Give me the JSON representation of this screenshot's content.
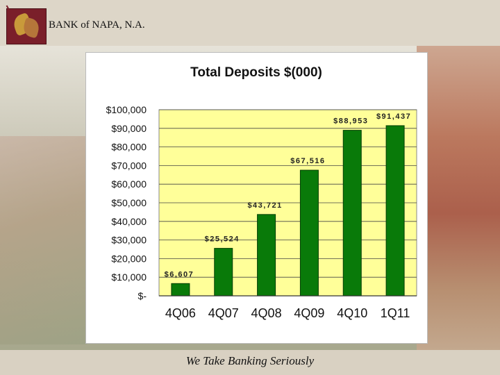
{
  "header": {
    "bank_name": "BANK of NAPA, N.A."
  },
  "footer": {
    "tagline": "We Take Banking Seriously"
  },
  "colors": {
    "plot_background": "#ffff99",
    "bar": "#097a09",
    "bar_edge": "#053f05",
    "gridline": "#444444"
  },
  "chart_data": {
    "type": "bar",
    "title": "Total Deposits $(000)",
    "xlabel": "",
    "ylabel": "",
    "categories": [
      "4Q06",
      "4Q07",
      "4Q08",
      "4Q09",
      "4Q10",
      "1Q11"
    ],
    "values": [
      6607,
      25524,
      43721,
      67516,
      88953,
      91437
    ],
    "value_labels": [
      "$6,607",
      "$25,524",
      "$43,721",
      "$67,516",
      "$88,953",
      "$91,437"
    ],
    "ylim": [
      0,
      100000
    ],
    "yticks": [
      0,
      10000,
      20000,
      30000,
      40000,
      50000,
      60000,
      70000,
      80000,
      90000,
      100000
    ],
    "ytick_labels": [
      "$-",
      "$10,000",
      "$20,000",
      "$30,000",
      "$40,000",
      "$50,000",
      "$60,000",
      "$70,000",
      "$80,000",
      "$90,000",
      "$100,000"
    ],
    "grid": true,
    "legend": "none"
  }
}
